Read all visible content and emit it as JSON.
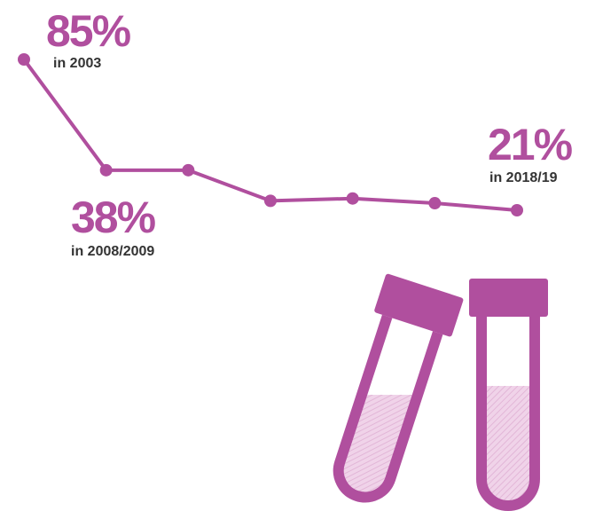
{
  "chart_data": {
    "type": "line",
    "categories": [
      null,
      null,
      null,
      null,
      null,
      null,
      null
    ],
    "values": [
      85,
      38,
      38,
      25,
      26,
      24,
      21
    ],
    "value_labels": [
      "85%",
      "38%",
      null,
      null,
      null,
      null,
      "21%"
    ],
    "notes": [
      "in 2003",
      "in 2008/2009",
      null,
      null,
      null,
      null,
      "in 2018/19"
    ],
    "color": "#b04f9e"
  }
}
